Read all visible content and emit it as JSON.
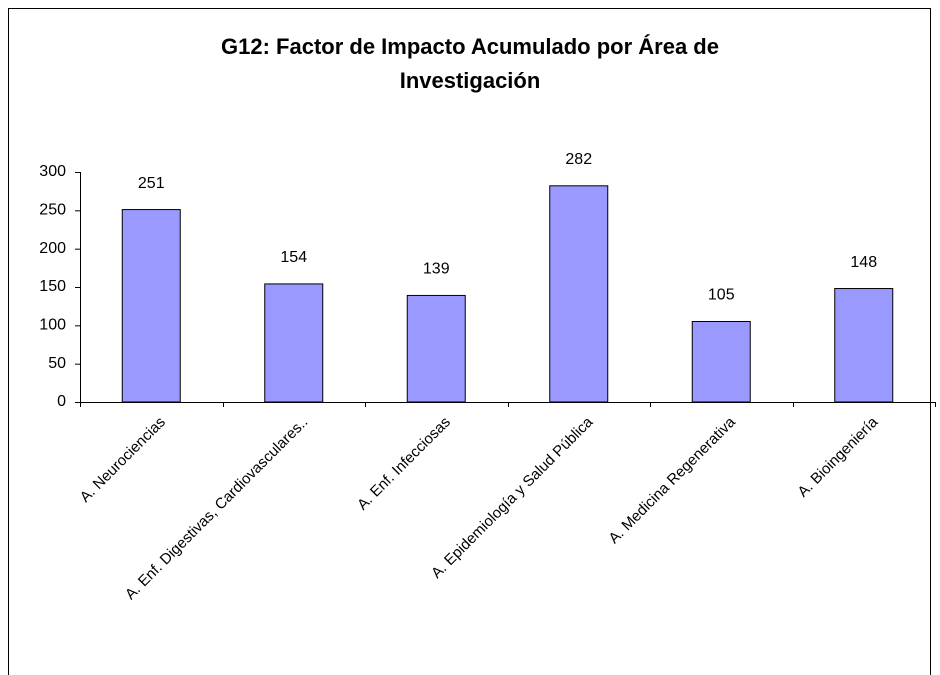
{
  "chart_data": {
    "type": "bar",
    "title": "G12: Factor de Impacto Acumulado por Área de Investigación",
    "categories": [
      "A. Neurociencias",
      "A. Enf. Digestivas, Cardiovasculares..",
      "A. Enf. Infecciosas",
      "A. Epidemiología y Salud Pública",
      "A. Medicina Regenerativa",
      "A. Bioingeniería"
    ],
    "values": [
      251,
      154,
      139,
      282,
      105,
      148
    ],
    "color": "#9999ff",
    "ylim": [
      0,
      300
    ],
    "yticks": [
      0,
      50,
      100,
      150,
      200,
      250,
      300
    ],
    "grid": false
  }
}
